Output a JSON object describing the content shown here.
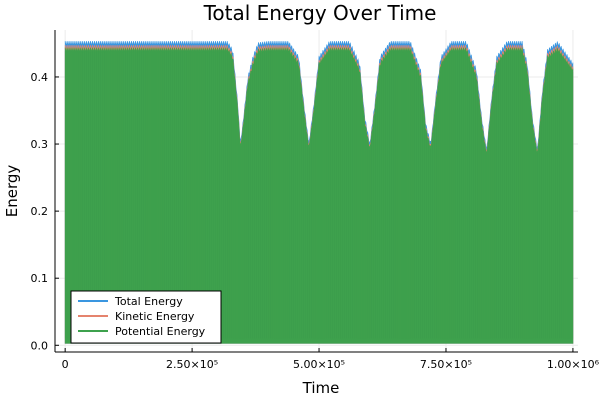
{
  "chart_data": {
    "type": "area",
    "title": "Total Energy Over Time",
    "xlabel": "Time",
    "ylabel": "Energy",
    "xlim": [
      -20000,
      1010000
    ],
    "ylim": [
      -0.01,
      0.47
    ],
    "grid": true,
    "legend_position": "bottom-left",
    "x_ticks": [
      {
        "value": 0,
        "label": "0"
      },
      {
        "value": 250000,
        "label": "2.50×10⁵"
      },
      {
        "value": 500000,
        "label": "5.00×10⁵"
      },
      {
        "value": 750000,
        "label": "7.50×10⁵"
      },
      {
        "value": 1000000,
        "label": "1.00×10⁶"
      }
    ],
    "y_ticks": [
      {
        "value": 0.0,
        "label": "0.0"
      },
      {
        "value": 0.1,
        "label": "0.1"
      },
      {
        "value": 0.2,
        "label": "0.2"
      },
      {
        "value": 0.3,
        "label": "0.3"
      },
      {
        "value": 0.4,
        "label": "0.4"
      }
    ],
    "envelope": {
      "x": [
        0,
        320000,
        330000,
        340000,
        345000,
        350000,
        360000,
        370000,
        380000,
        400000,
        440000,
        460000,
        470000,
        480000,
        490000,
        500000,
        520000,
        560000,
        580000,
        590000,
        600000,
        610000,
        620000,
        640000,
        680000,
        700000,
        710000,
        720000,
        730000,
        740000,
        760000,
        790000,
        810000,
        820000,
        830000,
        840000,
        850000,
        870000,
        900000,
        910000,
        920000,
        930000,
        940000,
        950000,
        970000,
        1000000
      ],
      "y": [
        0.452,
        0.452,
        0.44,
        0.36,
        0.3,
        0.33,
        0.4,
        0.43,
        0.45,
        0.452,
        0.452,
        0.43,
        0.36,
        0.3,
        0.36,
        0.43,
        0.452,
        0.452,
        0.42,
        0.34,
        0.3,
        0.36,
        0.43,
        0.452,
        0.452,
        0.41,
        0.33,
        0.3,
        0.37,
        0.43,
        0.452,
        0.452,
        0.41,
        0.34,
        0.29,
        0.37,
        0.43,
        0.452,
        0.452,
        0.42,
        0.34,
        0.29,
        0.38,
        0.44,
        0.452,
        0.42
      ]
    },
    "series": [
      {
        "name": "Total Energy",
        "color": "#3a96e0"
      },
      {
        "name": "Kinetic Energy",
        "color": "#e5836d"
      },
      {
        "name": "Potential Energy",
        "color": "#3ea14d"
      }
    ]
  }
}
